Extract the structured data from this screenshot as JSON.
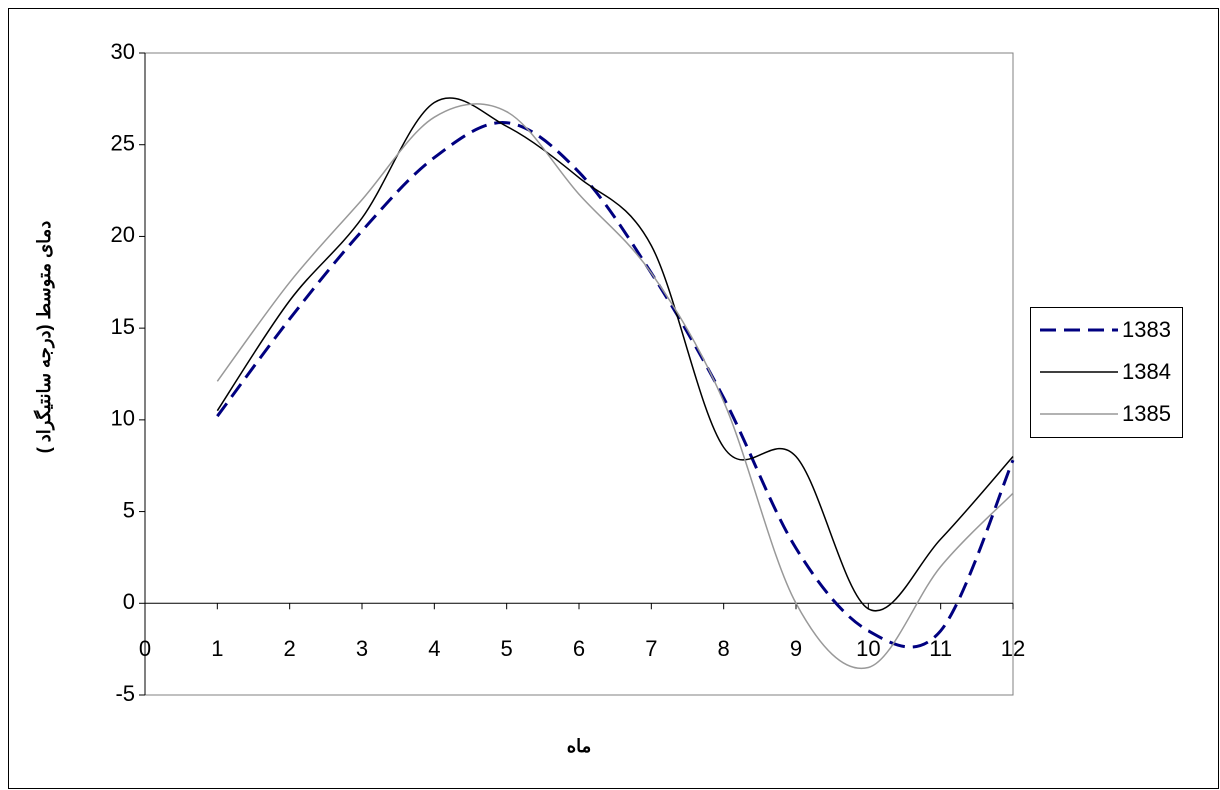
{
  "chart_data": {
    "type": "line",
    "x_label": "ماه",
    "y_label": "دمای متوسط  (درجه سانتیگراد )",
    "x": [
      1,
      2,
      3,
      4,
      5,
      6,
      7,
      8,
      9,
      10,
      11,
      12
    ],
    "series": [
      {
        "name": "1383",
        "color": "#000080",
        "dashed": true,
        "values": [
          10.2,
          15.5,
          20.3,
          24.3,
          26.2,
          23.5,
          18,
          11.2,
          3,
          -1.5,
          -1.5,
          7.8
        ]
      },
      {
        "name": "1384",
        "color": "#000000",
        "dashed": false,
        "values": [
          10.5,
          16.5,
          21,
          27.3,
          26,
          23.2,
          19.5,
          8.5,
          8,
          -0.3,
          3.5,
          8
        ]
      },
      {
        "name": "1385",
        "color": "#999999",
        "dashed": false,
        "values": [
          12.1,
          17.5,
          22,
          26.5,
          26.8,
          22.3,
          18,
          11,
          0,
          -3.5,
          2,
          6
        ]
      }
    ],
    "xlim": [
      0,
      12
    ],
    "xticks": [
      0,
      1,
      2,
      3,
      4,
      5,
      6,
      7,
      8,
      9,
      10,
      11,
      12
    ],
    "ylim": [
      -5,
      30
    ],
    "yticks": [
      -5,
      0,
      5,
      10,
      15,
      20,
      25,
      30
    ],
    "grid": false,
    "legend": "right"
  }
}
